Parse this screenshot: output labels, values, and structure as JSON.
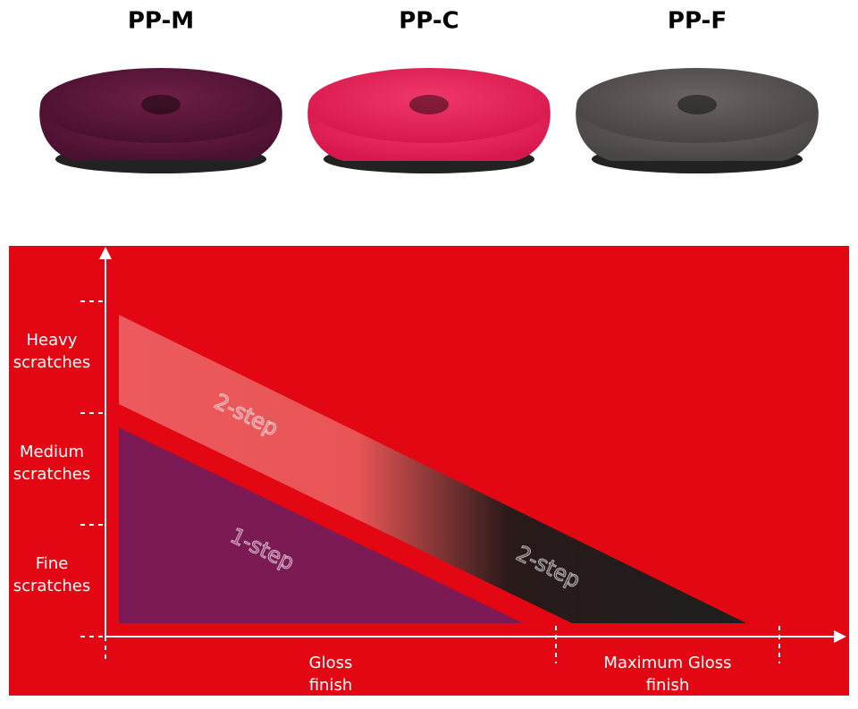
{
  "pads": [
    {
      "label": "PP-M"
    },
    {
      "label": "PP-C"
    },
    {
      "label": "PP-F"
    }
  ],
  "diagram": {
    "y_labels": [
      [
        "Heavy",
        "scratches"
      ],
      [
        "Medium",
        "scratches"
      ],
      [
        "Fine",
        "scratches"
      ]
    ],
    "x_labels": [
      [
        "Gloss",
        "finish"
      ],
      [
        "Maximum Gloss",
        "finish"
      ]
    ],
    "regions": [
      "2-step",
      "1-step",
      "2-step"
    ]
  }
}
